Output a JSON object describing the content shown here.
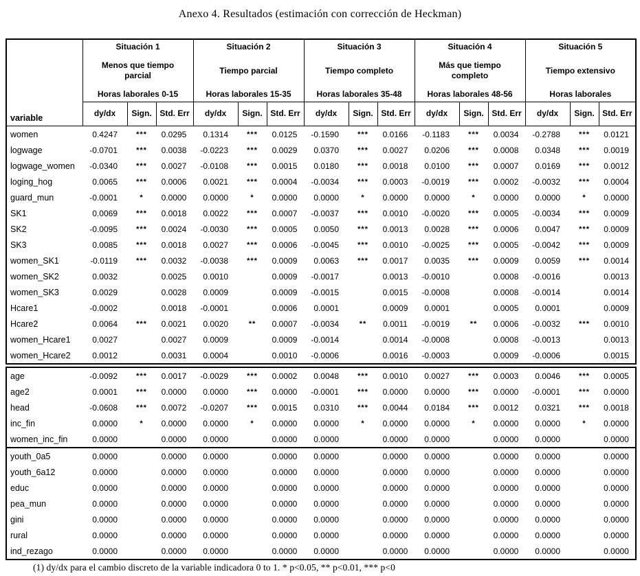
{
  "page": {
    "title": "Anexo 4. Resultados (estimación con corrección de Heckman)",
    "footnote": "(1) dy/dx para el cambio discreto de la variable indicadora 0 to 1. * p<0.05, ** p<0.01, *** p<0"
  },
  "table": {
    "variable_header": "variable",
    "metric_headers": [
      "dy/dx",
      "Sign.",
      "Std. Err"
    ],
    "situations": [
      {
        "name": "Situación 1",
        "description": "Menos que tiempo parcial",
        "hours": "Horas laborales 0-15"
      },
      {
        "name": "Situación 2",
        "description": "Tiempo parcial",
        "hours": "Horas laborales 15-35"
      },
      {
        "name": "Situación 3",
        "description": "Tiempo completo",
        "hours": "Horas laborales 35-48"
      },
      {
        "name": "Situación 4",
        "description": "Más que tiempo completo",
        "hours": "Horas laborales 48-56"
      },
      {
        "name": "Situación 5",
        "description": "Tiempo extensivo",
        "hours": "Horas laborales"
      }
    ],
    "block1_rows": [
      [
        "women",
        "0.4247",
        "***",
        "0.0295",
        "0.1314",
        "***",
        "0.0125",
        "-0.1590",
        "***",
        "0.0166",
        "-0.1183",
        "***",
        "0.0034",
        "-0.2788",
        "***",
        "0.0121"
      ],
      [
        "logwage",
        "-0.0701",
        "***",
        "0.0038",
        "-0.0223",
        "***",
        "0.0029",
        "0.0370",
        "***",
        "0.0027",
        "0.0206",
        "***",
        "0.0008",
        "0.0348",
        "***",
        "0.0019"
      ],
      [
        "logwage_women",
        "-0.0340",
        "***",
        "0.0027",
        "-0.0108",
        "***",
        "0.0015",
        "0.0180",
        "***",
        "0.0018",
        "0.0100",
        "***",
        "0.0007",
        "0.0169",
        "***",
        "0.0012"
      ],
      [
        "loging_hog",
        "0.0065",
        "***",
        "0.0006",
        "0.0021",
        "***",
        "0.0004",
        "-0.0034",
        "***",
        "0.0003",
        "-0.0019",
        "***",
        "0.0002",
        "-0.0032",
        "***",
        "0.0004"
      ],
      [
        "guard_mun",
        "-0.0001",
        "*",
        "0.0000",
        "0.0000",
        "*",
        "0.0000",
        "0.0000",
        "*",
        "0.0000",
        "0.0000",
        "*",
        "0.0000",
        "0.0000",
        "*",
        "0.0000"
      ],
      [
        "SK1",
        "0.0069",
        "***",
        "0.0018",
        "0.0022",
        "***",
        "0.0007",
        "-0.0037",
        "***",
        "0.0010",
        "-0.0020",
        "***",
        "0.0005",
        "-0.0034",
        "***",
        "0.0009"
      ],
      [
        "SK2",
        "-0.0095",
        "***",
        "0.0024",
        "-0.0030",
        "***",
        "0.0005",
        "0.0050",
        "***",
        "0.0013",
        "0.0028",
        "***",
        "0.0006",
        "0.0047",
        "***",
        "0.0009"
      ],
      [
        "SK3",
        "0.0085",
        "***",
        "0.0018",
        "0.0027",
        "***",
        "0.0006",
        "-0.0045",
        "***",
        "0.0010",
        "-0.0025",
        "***",
        "0.0005",
        "-0.0042",
        "***",
        "0.0009"
      ],
      [
        "women_SK1",
        "-0.0119",
        "***",
        "0.0032",
        "-0.0038",
        "***",
        "0.0009",
        "0.0063",
        "***",
        "0.0017",
        "0.0035",
        "***",
        "0.0009",
        "0.0059",
        "***",
        "0.0014"
      ],
      [
        "women_SK2",
        "0.0032",
        "",
        "0.0025",
        "0.0010",
        "",
        "0.0009",
        "-0.0017",
        "",
        "0.0013",
        "-0.0010",
        "",
        "0.0008",
        "-0.0016",
        "",
        "0.0013"
      ],
      [
        "women_SK3",
        "0.0029",
        "",
        "0.0028",
        "0.0009",
        "",
        "0.0009",
        "-0.0015",
        "",
        "0.0015",
        "-0.0008",
        "",
        "0.0008",
        "-0.0014",
        "",
        "0.0014"
      ],
      [
        "Hcare1",
        "-0.0002",
        "",
        "0.0018",
        "-0.0001",
        "",
        "0.0006",
        "0.0001",
        "",
        "0.0009",
        "0.0001",
        "",
        "0.0005",
        "0.0001",
        "",
        "0.0009"
      ],
      [
        "Hcare2",
        "0.0064",
        "***",
        "0.0021",
        "0.0020",
        "**",
        "0.0007",
        "-0.0034",
        "**",
        "0.0011",
        "-0.0019",
        "**",
        "0.0006",
        "-0.0032",
        "***",
        "0.0010"
      ],
      [
        "women_Hcare1",
        "0.0027",
        "",
        "0.0027",
        "0.0009",
        "",
        "0.0009",
        "-0.0014",
        "",
        "0.0014",
        "-0.0008",
        "",
        "0.0008",
        "-0.0013",
        "",
        "0.0013"
      ],
      [
        "women_Hcare2",
        "0.0012",
        "",
        "0.0031",
        "0.0004",
        "",
        "0.0010",
        "-0.0006",
        "",
        "0.0016",
        "-0.0003",
        "",
        "0.0009",
        "-0.0006",
        "",
        "0.0015"
      ]
    ],
    "block2_rows": [
      [
        "age",
        "-0.0092",
        "***",
        "0.0017",
        "-0.0029",
        "***",
        "0.0002",
        "0.0048",
        "***",
        "0.0010",
        "0.0027",
        "***",
        "0.0003",
        "0.0046",
        "***",
        "0.0005"
      ],
      [
        "age2",
        "0.0001",
        "***",
        "0.0000",
        "0.0000",
        "***",
        "0.0000",
        "-0.0001",
        "***",
        "0.0000",
        "0.0000",
        "***",
        "0.0000",
        "-0.0001",
        "***",
        "0.0000"
      ],
      [
        "head",
        "-0.0608",
        "***",
        "0.0072",
        "-0.0207",
        "***",
        "0.0015",
        "0.0310",
        "***",
        "0.0044",
        "0.0184",
        "***",
        "0.0012",
        "0.0321",
        "***",
        "0.0018"
      ],
      [
        "inc_fin",
        "0.0000",
        "*",
        "0.0000",
        "0.0000",
        "*",
        "0.0000",
        "0.0000",
        "*",
        "0.0000",
        "0.0000",
        "*",
        "0.0000",
        "0.0000",
        "*",
        "0.0000"
      ],
      [
        "women_inc_fin",
        "0.0000",
        "",
        "0.0000",
        "0.0000",
        "",
        "0.0000",
        "0.0000",
        "",
        "0.0000",
        "0.0000",
        "",
        "0.0000",
        "0.0000",
        "",
        "0.0000"
      ]
    ],
    "block3_rows": [
      [
        "youth_0a5",
        "0.0000",
        "",
        "0.0000",
        "0.0000",
        "",
        "0.0000",
        "0.0000",
        "",
        "0.0000",
        "0.0000",
        "",
        "0.0000",
        "0.0000",
        "",
        "0.0000"
      ],
      [
        "youth_6a12",
        "0.0000",
        "",
        "0.0000",
        "0.0000",
        "",
        "0.0000",
        "0.0000",
        "",
        "0.0000",
        "0.0000",
        "",
        "0.0000",
        "0.0000",
        "",
        "0.0000"
      ],
      [
        "educ",
        "0.0000",
        "",
        "0.0000",
        "0.0000",
        "",
        "0.0000",
        "0.0000",
        "",
        "0.0000",
        "0.0000",
        "",
        "0.0000",
        "0.0000",
        "",
        "0.0000"
      ],
      [
        "pea_mun",
        "0.0000",
        "",
        "0.0000",
        "0.0000",
        "",
        "0.0000",
        "0.0000",
        "",
        "0.0000",
        "0.0000",
        "",
        "0.0000",
        "0.0000",
        "",
        "0.0000"
      ],
      [
        "gini",
        "0.0000",
        "",
        "0.0000",
        "0.0000",
        "",
        "0.0000",
        "0.0000",
        "",
        "0.0000",
        "0.0000",
        "",
        "0.0000",
        "0.0000",
        "",
        "0.0000"
      ],
      [
        "rural",
        "0.0000",
        "",
        "0.0000",
        "0.0000",
        "",
        "0.0000",
        "0.0000",
        "",
        "0.0000",
        "0.0000",
        "",
        "0.0000",
        "0.0000",
        "",
        "0.0000"
      ],
      [
        "ind_rezago",
        "0.0000",
        "",
        "0.0000",
        "0.0000",
        "",
        "0.0000",
        "0.0000",
        "",
        "0.0000",
        "0.0000",
        "",
        "0.0000",
        "0.0000",
        "",
        "0.0000"
      ]
    ]
  }
}
